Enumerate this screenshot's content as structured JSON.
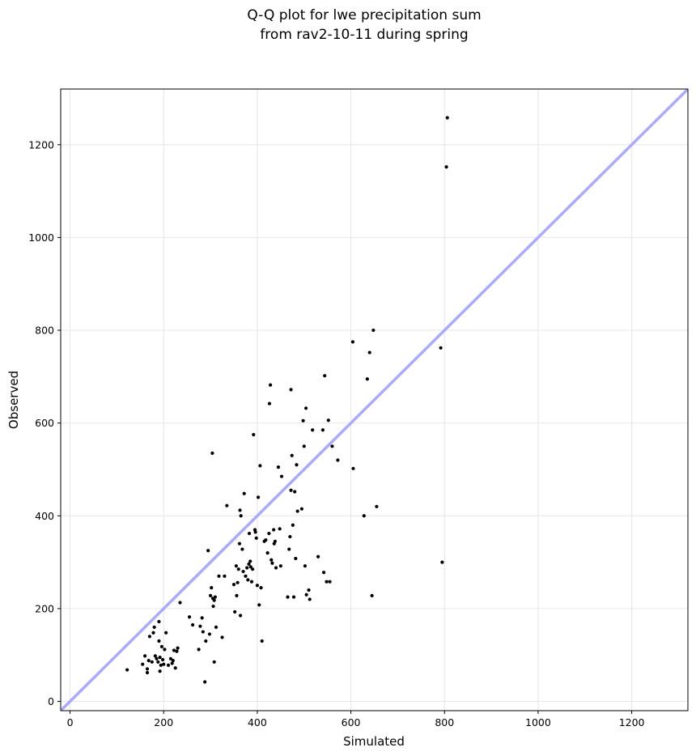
{
  "chart_data": {
    "type": "scatter",
    "title_lines": [
      "Q-Q plot for lwe precipitation sum",
      "from rav2-10-11 during spring"
    ],
    "xlabel": "Simulated",
    "ylabel": "Observed",
    "xlim": [
      -20,
      1320
    ],
    "ylim": [
      -20,
      1320
    ],
    "xticks": [
      0,
      200,
      400,
      600,
      800,
      1000,
      1200
    ],
    "yticks": [
      0,
      200,
      400,
      600,
      800,
      1000,
      1200
    ],
    "grid": true,
    "reference_line": {
      "from": [
        -20,
        -20
      ],
      "to": [
        1320,
        1320
      ],
      "color": "#aaaaff"
    },
    "point_color": "#000000",
    "points": [
      [
        122,
        68
      ],
      [
        155,
        80
      ],
      [
        160,
        98
      ],
      [
        165,
        70
      ],
      [
        165,
        62
      ],
      [
        168,
        88
      ],
      [
        170,
        140
      ],
      [
        175,
        85
      ],
      [
        178,
        148
      ],
      [
        180,
        160
      ],
      [
        182,
        98
      ],
      [
        185,
        92
      ],
      [
        188,
        85
      ],
      [
        190,
        130
      ],
      [
        190,
        172
      ],
      [
        192,
        65
      ],
      [
        192,
        95
      ],
      [
        194,
        78
      ],
      [
        196,
        118
      ],
      [
        198,
        90
      ],
      [
        200,
        80
      ],
      [
        202,
        112
      ],
      [
        205,
        148
      ],
      [
        210,
        78
      ],
      [
        215,
        92
      ],
      [
        218,
        82
      ],
      [
        220,
        88
      ],
      [
        222,
        110
      ],
      [
        225,
        72
      ],
      [
        228,
        108
      ],
      [
        230,
        115
      ],
      [
        235,
        213
      ],
      [
        255,
        182
      ],
      [
        262,
        165
      ],
      [
        275,
        112
      ],
      [
        278,
        162
      ],
      [
        282,
        180
      ],
      [
        284,
        150
      ],
      [
        288,
        42
      ],
      [
        290,
        130
      ],
      [
        295,
        325
      ],
      [
        298,
        145
      ],
      [
        300,
        228
      ],
      [
        302,
        245
      ],
      [
        304,
        535
      ],
      [
        305,
        222
      ],
      [
        306,
        205
      ],
      [
        308,
        218
      ],
      [
        308,
        85
      ],
      [
        310,
        225
      ],
      [
        312,
        160
      ],
      [
        318,
        270
      ],
      [
        325,
        138
      ],
      [
        330,
        270
      ],
      [
        335,
        422
      ],
      [
        350,
        252
      ],
      [
        352,
        193
      ],
      [
        355,
        292
      ],
      [
        356,
        228
      ],
      [
        358,
        256
      ],
      [
        360,
        285
      ],
      [
        362,
        340
      ],
      [
        363,
        412
      ],
      [
        364,
        185
      ],
      [
        365,
        400
      ],
      [
        368,
        328
      ],
      [
        370,
        280
      ],
      [
        372,
        448
      ],
      [
        375,
        270
      ],
      [
        378,
        288
      ],
      [
        380,
        262
      ],
      [
        382,
        296
      ],
      [
        383,
        362
      ],
      [
        385,
        302
      ],
      [
        386,
        290
      ],
      [
        388,
        258
      ],
      [
        390,
        285
      ],
      [
        392,
        575
      ],
      [
        395,
        370
      ],
      [
        396,
        365
      ],
      [
        398,
        352
      ],
      [
        400,
        250
      ],
      [
        402,
        440
      ],
      [
        404,
        208
      ],
      [
        406,
        508
      ],
      [
        408,
        245
      ],
      [
        410,
        130
      ],
      [
        415,
        345
      ],
      [
        418,
        348
      ],
      [
        422,
        320
      ],
      [
        425,
        362
      ],
      [
        426,
        642
      ],
      [
        428,
        682
      ],
      [
        430,
        305
      ],
      [
        432,
        298
      ],
      [
        435,
        370
      ],
      [
        436,
        340
      ],
      [
        438,
        345
      ],
      [
        440,
        288
      ],
      [
        445,
        505
      ],
      [
        448,
        372
      ],
      [
        450,
        292
      ],
      [
        452,
        485
      ],
      [
        465,
        225
      ],
      [
        468,
        328
      ],
      [
        470,
        355
      ],
      [
        472,
        672
      ],
      [
        472,
        455
      ],
      [
        474,
        530
      ],
      [
        476,
        380
      ],
      [
        478,
        225
      ],
      [
        480,
        452
      ],
      [
        482,
        308
      ],
      [
        484,
        510
      ],
      [
        486,
        410
      ],
      [
        495,
        415
      ],
      [
        498,
        605
      ],
      [
        500,
        550
      ],
      [
        502,
        292
      ],
      [
        504,
        632
      ],
      [
        505,
        230
      ],
      [
        510,
        240
      ],
      [
        512,
        220
      ],
      [
        518,
        585
      ],
      [
        530,
        312
      ],
      [
        540,
        585
      ],
      [
        542,
        278
      ],
      [
        544,
        702
      ],
      [
        548,
        258
      ],
      [
        552,
        606
      ],
      [
        555,
        258
      ],
      [
        560,
        550
      ],
      [
        572,
        520
      ],
      [
        604,
        775
      ],
      [
        605,
        502
      ],
      [
        628,
        400
      ],
      [
        635,
        695
      ],
      [
        640,
        752
      ],
      [
        645,
        228
      ],
      [
        648,
        800
      ],
      [
        655,
        420
      ],
      [
        792,
        762
      ],
      [
        795,
        300
      ],
      [
        804,
        1152
      ],
      [
        806,
        1258
      ]
    ]
  }
}
